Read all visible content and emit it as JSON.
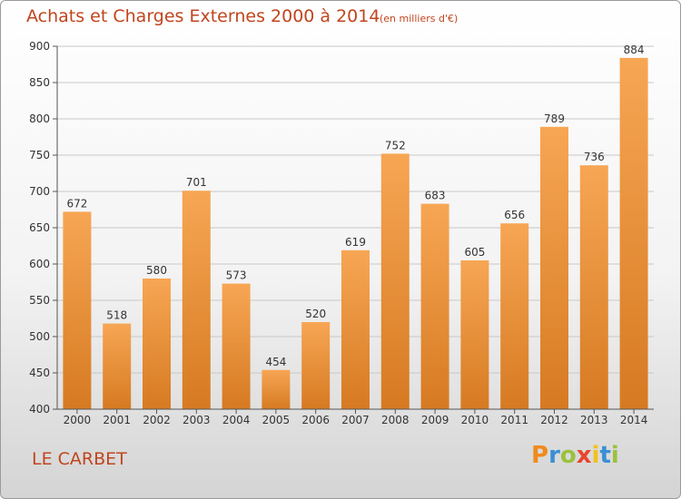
{
  "header": {
    "title": "Achats et Charges Externes 2000 à 2014",
    "unit": "(en milliers d'€)"
  },
  "footer": {
    "place": "LE CARBET",
    "brand": "Proxiti",
    "brand_colors": [
      "#f08a1c",
      "#3a8fd4",
      "#9ac23c",
      "#e8452c",
      "#f0c21c",
      "#3a8fd4",
      "#9ac23c"
    ]
  },
  "colors": {
    "title": "#c0451e",
    "bar_light": "#f7a654",
    "bar_dark": "#d67a22",
    "axis": "#555555",
    "grid": "#c8c8c8"
  },
  "chart_data": {
    "type": "bar",
    "title": "Achats et Charges Externes 2000 à 2014",
    "categories": [
      "2000",
      "2001",
      "2002",
      "2003",
      "2004",
      "2005",
      "2006",
      "2007",
      "2008",
      "2009",
      "2010",
      "2011",
      "2012",
      "2013",
      "2014"
    ],
    "values": [
      672,
      518,
      580,
      701,
      573,
      454,
      520,
      619,
      752,
      683,
      605,
      656,
      789,
      736,
      884
    ],
    "ylim": [
      400,
      900
    ],
    "yticks": [
      400,
      450,
      500,
      550,
      600,
      650,
      700,
      750,
      800,
      850,
      900
    ],
    "xlabel": "",
    "ylabel": "",
    "grid": true
  }
}
